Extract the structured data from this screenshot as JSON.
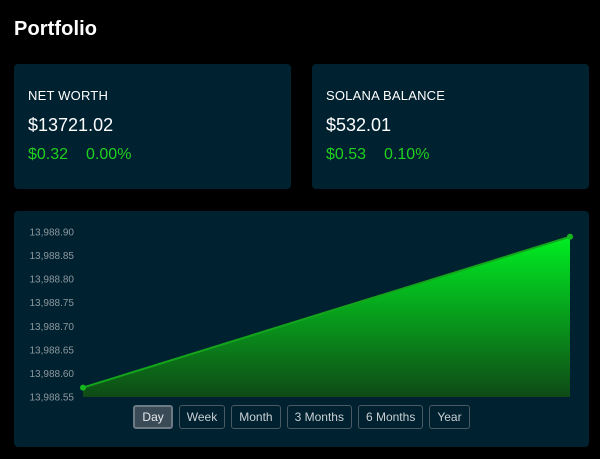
{
  "page": {
    "title": "Portfolio"
  },
  "cards": {
    "net_worth": {
      "label": "NET WORTH",
      "value": "$13721.02",
      "change_amount": "$0.32",
      "change_percent": "0.00%"
    },
    "solana_balance": {
      "label": "SOLANA BALANCE",
      "value": "$532.01",
      "change_amount": "$0.53",
      "change_percent": "0.10%"
    }
  },
  "colors": {
    "positive": "#20d020",
    "card_bg": "#00212f",
    "page_bg": "#000000"
  },
  "range_buttons": [
    {
      "label": "Day",
      "active": true
    },
    {
      "label": "Week",
      "active": false
    },
    {
      "label": "Month",
      "active": false
    },
    {
      "label": "3 Months",
      "active": false
    },
    {
      "label": "6 Months",
      "active": false
    },
    {
      "label": "Year",
      "active": false
    }
  ],
  "chart_data": {
    "type": "area",
    "ylim": [
      13988.55,
      13988.9
    ],
    "y_ticks": [
      "13,988.90",
      "13,988.85",
      "13,988.80",
      "13,988.75",
      "13,988.70",
      "13,988.65",
      "13,988.60",
      "13,988.55"
    ],
    "series": [
      {
        "points": [
          {
            "x": 0,
            "y": 13988.57
          },
          {
            "x": 1,
            "y": 13988.89
          }
        ]
      }
    ],
    "grid": false,
    "fill": "green gradient"
  }
}
